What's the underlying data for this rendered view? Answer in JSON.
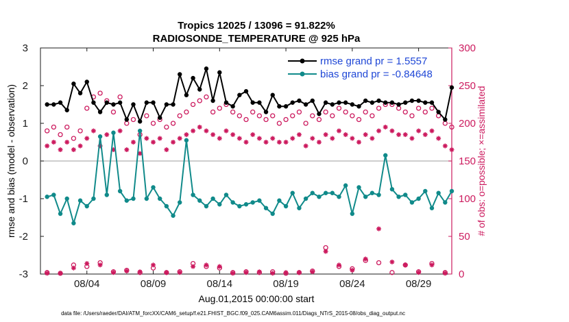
{
  "chart_data": {
    "type": "line",
    "title_line1": "Tropics 12025 / 13096 = 91.822%",
    "title_line2": "RADIOSONDE_TEMPERATURE @ 925 hPa",
    "xlabel": "Aug.01,2015 00:00:00 start",
    "ylabel_left": "rmse and bias (model - observation)",
    "ylabel_right": "# of obs: o=possible; ×=assimilated",
    "footer": "data file: /Users/raeder/DAI/ATM_forcXX/CAM6_setup/f.e21.FHIST_BGC.f09_025.CAM6assim.011/Diags_NTrS_2015-08/obs_diag_output.nc",
    "xlim": [
      0.5,
      31.5
    ],
    "ylim_left": [
      -3,
      3
    ],
    "ylim_right": [
      0,
      300
    ],
    "x_ticks": [
      {
        "x": 4,
        "label": "08/04"
      },
      {
        "x": 9,
        "label": "08/09"
      },
      {
        "x": 14,
        "label": "08/14"
      },
      {
        "x": 19,
        "label": "08/19"
      },
      {
        "x": 24,
        "label": "08/24"
      },
      {
        "x": 29,
        "label": "08/29"
      }
    ],
    "y_ticks_left": [
      {
        "v": -3,
        "label": "-3"
      },
      {
        "v": -2,
        "label": "-2"
      },
      {
        "v": -1,
        "label": "-1"
      },
      {
        "v": 0,
        "label": "0"
      },
      {
        "v": 1,
        "label": "1"
      },
      {
        "v": 2,
        "label": "2"
      },
      {
        "v": 3,
        "label": "3"
      }
    ],
    "y_ticks_right": [
      {
        "v": 0,
        "label": "0"
      },
      {
        "v": 50,
        "label": "50"
      },
      {
        "v": 100,
        "label": "100"
      },
      {
        "v": 150,
        "label": "150"
      },
      {
        "v": 200,
        "label": "200"
      },
      {
        "v": 250,
        "label": "250"
      },
      {
        "v": 300,
        "label": "300"
      }
    ],
    "legend": [
      {
        "name": "rmse grand pr = 1.5557"
      },
      {
        "name": "bias grand pr = -0.84648"
      }
    ],
    "colors": {
      "rmse": "#000000",
      "bias": "#108a8a",
      "obs": "#cc1a5e",
      "right_axis": "#cc1a5e",
      "zero_line": "#b0b0b0",
      "legend_text": "#1f47d6"
    },
    "series": [
      {
        "name": "rmse",
        "x": [
          1,
          1.5,
          2,
          2.5,
          3,
          3.5,
          4,
          4.5,
          5,
          5.5,
          6,
          6.5,
          7,
          7.5,
          8,
          8.5,
          9,
          9.5,
          10,
          10.5,
          11,
          11.5,
          12,
          12.5,
          13,
          13.5,
          14,
          14.5,
          15,
          15.5,
          16,
          16.5,
          17,
          17.5,
          18,
          18.5,
          19,
          19.5,
          20,
          20.5,
          21,
          21.5,
          22,
          22.5,
          23,
          23.5,
          24,
          24.5,
          25,
          25.5,
          26,
          26.5,
          27,
          27.5,
          28,
          28.5,
          29,
          29.5,
          30,
          30.5,
          31,
          31.5
        ],
        "values": [
          1.5,
          1.5,
          1.55,
          1.35,
          2.05,
          1.8,
          2.1,
          1.55,
          1.3,
          1.55,
          1.5,
          1.55,
          1.1,
          1.5,
          1.05,
          1.55,
          1.55,
          1.15,
          1.5,
          1.5,
          2.3,
          1.75,
          2.2,
          1.9,
          2.45,
          1.6,
          2.35,
          1.55,
          1.45,
          1.75,
          1.85,
          1.55,
          1.55,
          1.3,
          1.75,
          1.45,
          1.45,
          1.55,
          1.6,
          1.5,
          1.6,
          1.25,
          1.55,
          1.5,
          1.55,
          1.55,
          1.5,
          1.45,
          1.6,
          1.55,
          1.6,
          1.55,
          1.55,
          1.5,
          1.55,
          1.6,
          1.6,
          1.55,
          1.55,
          1.3,
          1.1,
          1.95
        ]
      },
      {
        "name": "bias",
        "x": [
          1,
          1.5,
          2,
          2.5,
          3,
          3.5,
          4,
          4.5,
          5,
          5.5,
          6,
          6.5,
          7,
          7.5,
          8,
          8.5,
          9,
          9.5,
          10,
          10.5,
          11,
          11.5,
          12,
          12.5,
          13,
          13.5,
          14,
          14.5,
          15,
          15.5,
          16,
          16.5,
          17,
          17.5,
          18,
          18.5,
          19,
          19.5,
          20,
          20.5,
          21,
          21.5,
          22,
          22.5,
          23,
          23.5,
          24,
          24.5,
          25,
          25.5,
          26,
          26.5,
          27,
          27.5,
          28,
          28.5,
          29,
          29.5,
          30,
          30.5,
          31,
          31.5
        ],
        "values": [
          -0.95,
          -0.9,
          -1.4,
          -1.0,
          -1.65,
          -1.05,
          -1.2,
          -1.0,
          0.65,
          -0.9,
          0.75,
          -0.8,
          -1.05,
          -1.0,
          0.8,
          -1.0,
          -0.7,
          -1.0,
          -1.2,
          -1.45,
          -1.1,
          0.55,
          -0.9,
          -1.05,
          -1.2,
          -1.0,
          -1.15,
          -0.9,
          -1.1,
          -1.2,
          -1.15,
          -1.1,
          -1.05,
          -1.25,
          -1.4,
          -1.05,
          -1.2,
          -0.85,
          -1.25,
          -1.0,
          -0.85,
          -0.95,
          -0.85,
          -0.85,
          -0.95,
          -0.65,
          -1.4,
          -0.7,
          -0.95,
          -0.85,
          -0.9,
          0.15,
          -0.75,
          -0.95,
          -0.9,
          -1.1,
          -1.0,
          -0.8,
          -1.25,
          -0.85,
          -1.1,
          -0.8
        ]
      },
      {
        "name": "obs-possible",
        "x": [
          1,
          1.5,
          2,
          2.5,
          3,
          3.5,
          4,
          4.5,
          5,
          5.5,
          6,
          6.5,
          7,
          7.5,
          8,
          8.5,
          9,
          9.5,
          10,
          10.5,
          11,
          11.5,
          12,
          12.5,
          13,
          13.5,
          14,
          14.5,
          15,
          15.5,
          16,
          16.5,
          17,
          17.5,
          18,
          18.5,
          19,
          19.5,
          20,
          20.5,
          21,
          21.5,
          22,
          22.5,
          23,
          23.5,
          24,
          24.5,
          25,
          25.5,
          26,
          26.5,
          27,
          27.5,
          28,
          28.5,
          29,
          29.5,
          30,
          30.5,
          31,
          31.5
        ],
        "values": [
          190,
          195,
          185,
          195,
          180,
          190,
          220,
          235,
          240,
          230,
          215,
          235,
          200,
          205,
          185,
          210,
          200,
          205,
          195,
          200,
          210,
          215,
          225,
          230,
          235,
          215,
          220,
          225,
          215,
          210,
          205,
          215,
          210,
          205,
          210,
          200,
          205,
          210,
          215,
          200,
          210,
          205,
          215,
          210,
          220,
          215,
          210,
          205,
          215,
          210,
          220,
          225,
          225,
          220,
          215,
          210,
          220,
          215,
          220,
          210,
          200,
          195
        ]
      },
      {
        "name": "obs-assimilated",
        "x": [
          1,
          1.5,
          2,
          2.5,
          3,
          3.5,
          4,
          4.5,
          5,
          5.5,
          6,
          6.5,
          7,
          7.5,
          8,
          8.5,
          9,
          9.5,
          10,
          10.5,
          11,
          11.5,
          12,
          12.5,
          13,
          13.5,
          14,
          14.5,
          15,
          15.5,
          16,
          16.5,
          17,
          17.5,
          18,
          18.5,
          19,
          19.5,
          20,
          20.5,
          21,
          21.5,
          22,
          22.5,
          23,
          23.5,
          24,
          24.5,
          25,
          25.5,
          26,
          26.5,
          27,
          27.5,
          28,
          28.5,
          29,
          29.5,
          30,
          30.5,
          31,
          31.5
        ],
        "values": [
          170,
          175,
          165,
          175,
          165,
          170,
          180,
          190,
          170,
          185,
          165,
          190,
          165,
          175,
          160,
          180,
          175,
          180,
          165,
          175,
          180,
          185,
          190,
          195,
          190,
          185,
          180,
          190,
          185,
          180,
          175,
          185,
          180,
          175,
          180,
          175,
          175,
          180,
          185,
          170,
          180,
          175,
          185,
          180,
          190,
          185,
          180,
          175,
          185,
          180,
          190,
          195,
          190,
          185,
          185,
          180,
          190,
          185,
          190,
          180,
          170,
          165
        ]
      },
      {
        "name": "obs-possible-low",
        "x": [
          1,
          2,
          3,
          4,
          5,
          6,
          7,
          8,
          9,
          10,
          11,
          12,
          13,
          14,
          15,
          16,
          17,
          18,
          19,
          20,
          21,
          22,
          23,
          24,
          25,
          26,
          27,
          28,
          29,
          30,
          31
        ],
        "values": [
          2,
          1,
          12,
          10,
          15,
          3,
          5,
          2,
          8,
          2,
          3,
          14,
          10,
          8,
          2,
          3,
          2,
          3,
          1,
          2,
          4,
          35,
          10,
          7,
          18,
          15,
          2,
          12,
          3,
          14,
          2
        ]
      },
      {
        "name": "obs-assimilated-low",
        "x": [
          1,
          2,
          3,
          4,
          5,
          6,
          7,
          8,
          9,
          10,
          11,
          12,
          13,
          14,
          15,
          16,
          17,
          18,
          19,
          20,
          21,
          22,
          23,
          24,
          25,
          26,
          27,
          28,
          29,
          30,
          31
        ],
        "values": [
          1,
          1,
          8,
          14,
          12,
          2,
          4,
          3,
          12,
          2,
          2,
          10,
          12,
          10,
          1,
          2,
          3,
          1,
          2,
          2,
          3,
          30,
          12,
          5,
          20,
          60,
          16,
          12,
          2,
          12,
          1
        ]
      }
    ]
  }
}
